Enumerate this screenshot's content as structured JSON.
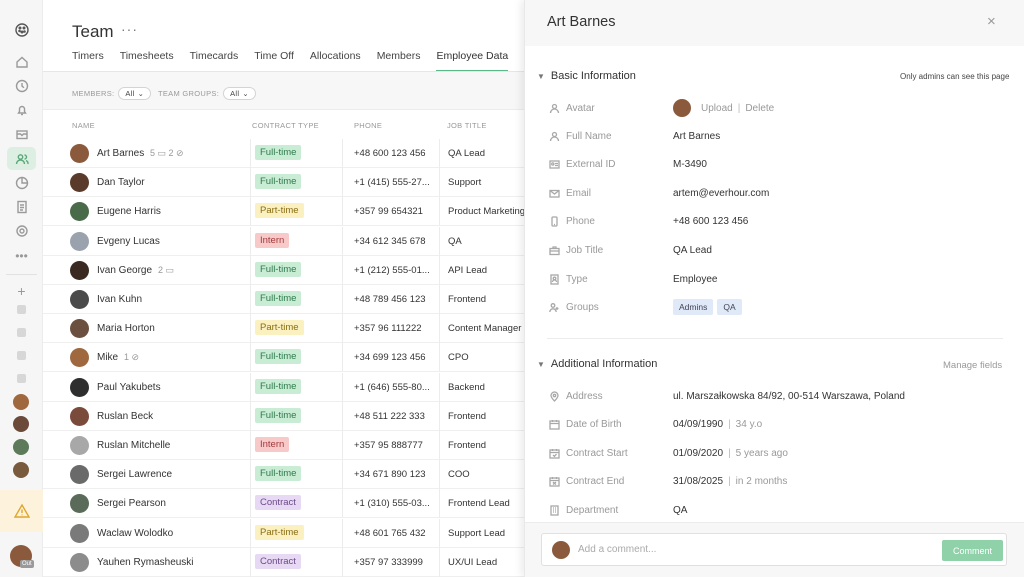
{
  "rail": {
    "icons": [
      "logo-icon",
      "home-icon",
      "clock-icon",
      "bell-icon",
      "inbox-icon",
      "team-icon",
      "pie-chart-icon",
      "document-icon",
      "settings-icon",
      "more-icon"
    ],
    "add_label": "+",
    "out_badge": "Out"
  },
  "page": {
    "title": "Team",
    "menu_dots": "···",
    "tabs": [
      "Timers",
      "Timesheets",
      "Timecards",
      "Time Off",
      "Allocations",
      "Members",
      "Employee Data"
    ],
    "active_tab": "Employee Data"
  },
  "filters": {
    "members_label": "MEMBERS:",
    "members_value": "All",
    "groups_label": "TEAM GROUPS:",
    "groups_value": "All"
  },
  "table": {
    "headers": {
      "name": "NAME",
      "contract": "CONTRACT TYPE",
      "phone": "PHONE",
      "job": "JOB TITLE"
    },
    "rows": [
      {
        "name": "Art Barnes",
        "extras": "5 ▭   2 ⊘",
        "contract": "Full-time",
        "phone": "+48 600 123 456",
        "job": "QA Lead"
      },
      {
        "name": "Dan Taylor",
        "extras": "",
        "contract": "Full-time",
        "phone": "+1 (415) 555-27...",
        "job": "Support"
      },
      {
        "name": "Eugene Harris",
        "extras": "",
        "contract": "Part-time",
        "phone": "+357 99 654321",
        "job": "Product Marketing"
      },
      {
        "name": "Evgeny Lucas",
        "extras": "",
        "contract": "Intern",
        "phone": "+34 612 345 678",
        "job": "QA"
      },
      {
        "name": "Ivan George",
        "extras": "2 ▭",
        "contract": "Full-time",
        "phone": "+1 (212) 555-01...",
        "job": "API Lead"
      },
      {
        "name": "Ivan Kuhn",
        "extras": "",
        "contract": "Full-time",
        "phone": "+48 789 456 123",
        "job": "Frontend"
      },
      {
        "name": "Maria Horton",
        "extras": "",
        "contract": "Part-time",
        "phone": "+357 96 111222",
        "job": "Content Manager"
      },
      {
        "name": "Mike",
        "extras": "1 ⊘",
        "contract": "Full-time",
        "phone": "+34 699 123 456",
        "job": "CPO"
      },
      {
        "name": "Paul Yakubets",
        "extras": "",
        "contract": "Full-time",
        "phone": "+1 (646) 555-80...",
        "job": "Backend"
      },
      {
        "name": "Ruslan Beck",
        "extras": "",
        "contract": "Full-time",
        "phone": "+48 511 222 333",
        "job": "Frontend"
      },
      {
        "name": "Ruslan Mitchelle",
        "extras": "",
        "contract": "Intern",
        "phone": "+357 95 888777",
        "job": "Frontend"
      },
      {
        "name": "Sergei Lawrence",
        "extras": "",
        "contract": "Full-time",
        "phone": "+34 671 890 123",
        "job": "COO"
      },
      {
        "name": "Sergei Pearson",
        "extras": "",
        "contract": "Contract",
        "phone": "+1 (310) 555-03...",
        "job": "Frontend Lead"
      },
      {
        "name": "Waclaw Wolodko",
        "extras": "",
        "contract": "Part-time",
        "phone": "+48 601 765 432",
        "job": "Support Lead"
      },
      {
        "name": "Yauhen Rymasheuski",
        "extras": "",
        "contract": "Contract",
        "phone": "+357 97 333999",
        "job": "UX/UI Lead"
      }
    ]
  },
  "contract_colors": {
    "Full-time": {
      "bg": "#c9ecd5",
      "fg": "#2f7a4c"
    },
    "Part-time": {
      "bg": "#faf0c0",
      "fg": "#8a6d14"
    },
    "Intern": {
      "bg": "#f7c9c9",
      "fg": "#a33b3b"
    },
    "Contract": {
      "bg": "#e7d9f3",
      "fg": "#6b4a8a"
    }
  },
  "panel": {
    "name": "Art Barnes",
    "close": "×",
    "basic": {
      "title": "Basic Information",
      "note": "Only admins can see this page",
      "avatar_label": "Avatar",
      "upload": "Upload",
      "delete": "Delete",
      "fields": [
        {
          "label": "Full Name",
          "value": "Art Barnes",
          "icon": "person-icon"
        },
        {
          "label": "External ID",
          "value": "M-3490",
          "icon": "id-card-icon"
        },
        {
          "label": "Email",
          "value": "artem@everhour.com",
          "icon": "mail-icon"
        },
        {
          "label": "Phone",
          "value": "+48 600 123 456",
          "icon": "phone-icon"
        },
        {
          "label": "Job Title",
          "value": "QA Lead",
          "icon": "briefcase-icon"
        },
        {
          "label": "Type",
          "value": "Employee",
          "icon": "badge-icon"
        }
      ],
      "groups_label": "Groups",
      "groups": [
        "Admins",
        "QA"
      ]
    },
    "additional": {
      "title": "Additional Information",
      "manage": "Manage fields",
      "fields": [
        {
          "label": "Address",
          "value": "ul. Marszałkowska 84/92, 00-514 Warszawa, Poland",
          "sub": "",
          "icon": "pin-icon"
        },
        {
          "label": "Date of Birth",
          "value": "04/09/1990",
          "sub": "34 y.o",
          "icon": "calendar-icon"
        },
        {
          "label": "Contract Start",
          "value": "01/09/2020",
          "sub": "5 years ago",
          "icon": "calendar-start-icon"
        },
        {
          "label": "Contract End",
          "value": "31/08/2025",
          "sub": "in 2 months",
          "icon": "calendar-end-icon"
        },
        {
          "label": "Department",
          "value": "QA",
          "sub": "",
          "icon": "building-icon"
        }
      ]
    },
    "comment": {
      "placeholder": "Add a comment...",
      "button": "Comment"
    }
  }
}
